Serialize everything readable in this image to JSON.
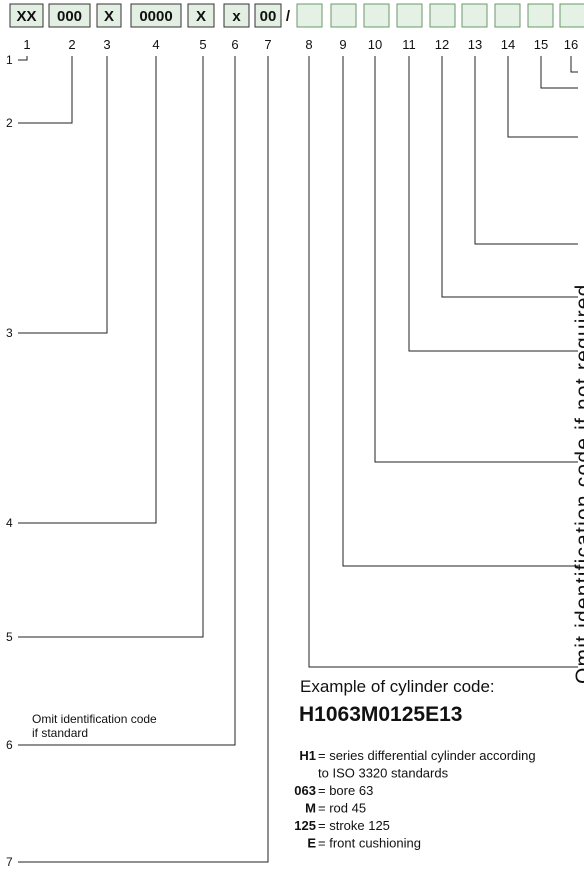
{
  "code_boxes": [
    "XX",
    "000",
    "X",
    "0000",
    "X",
    "x",
    "00"
  ],
  "separator": "/",
  "positions": [
    "1",
    "2",
    "3",
    "4",
    "5",
    "6",
    "7",
    "8",
    "9",
    "10",
    "11",
    "12",
    "13",
    "14",
    "15",
    "16"
  ],
  "left_labels": [
    "1",
    "2",
    "3",
    "4",
    "5",
    "6",
    "7"
  ],
  "left_note": [
    "Omit identification code",
    "if standard"
  ],
  "right_note": "Omit identification code if not required",
  "example": {
    "heading": "Example of cylinder code:",
    "code": "H1063M0125E13",
    "legend": [
      {
        "key": "H1",
        "lines": [
          "= series differential cylinder according",
          "to ISO 3320 standards"
        ]
      },
      {
        "key": "063",
        "lines": [
          "= bore 63"
        ]
      },
      {
        "key": "M",
        "lines": [
          "= rod 45"
        ]
      },
      {
        "key": "125",
        "lines": [
          "= stroke 125"
        ]
      },
      {
        "key": "E",
        "lines": [
          "= front cushioning"
        ]
      }
    ]
  }
}
